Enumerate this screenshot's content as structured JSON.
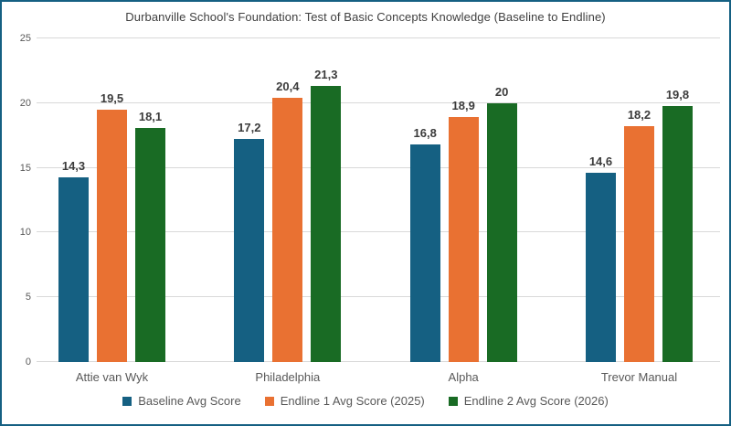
{
  "chart_data": {
    "type": "bar",
    "title": "Durbanville School's Foundation: Test of Basic Concepts Knowledge (Baseline to Endline)",
    "categories": [
      "Attie van Wyk",
      "Philadelphia",
      "Alpha",
      "Trevor Manual"
    ],
    "series": [
      {
        "name": "Baseline Avg Score",
        "color": "#156082",
        "values": [
          14.3,
          17.2,
          16.8,
          14.6
        ]
      },
      {
        "name": "Endline 1 Avg Score (2025)",
        "color": "#E97132",
        "values": [
          19.5,
          20.4,
          18.9,
          18.2
        ]
      },
      {
        "name": "Endline 2 Avg Score (2026)",
        "color": "#196B24",
        "values": [
          18.1,
          21.3,
          20,
          19.8
        ]
      }
    ],
    "value_label_decimal_separator": ",",
    "xlabel": "",
    "ylabel": "",
    "ylim": [
      0,
      25
    ],
    "yticks": [
      0,
      5,
      10,
      15,
      20,
      25
    ],
    "grid": true,
    "legend_position": "bottom"
  },
  "frame": {
    "border_color": "#156082",
    "gridline_color": "#d9d9d9"
  }
}
